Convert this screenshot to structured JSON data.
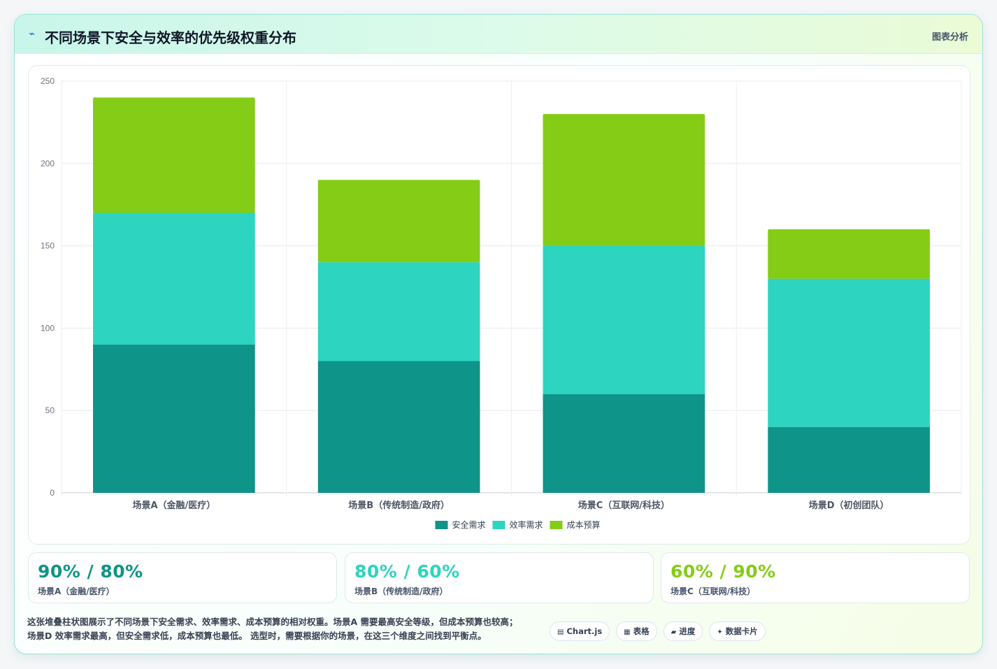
{
  "header": {
    "logo_icon": "⌁",
    "title": "不同场景下安全与效率的优先级权重分布",
    "tag": "图表分析"
  },
  "chart_data": {
    "type": "bar",
    "stacked": true,
    "categories": [
      "场景A（金融/医疗）",
      "场景B（传统制造/政府）",
      "场景C（互联网/科技）",
      "场景D（初创团队）"
    ],
    "series": [
      {
        "name": "安全需求",
        "values": [
          90,
          80,
          60,
          40
        ],
        "color": "#0e9488"
      },
      {
        "name": "效率需求",
        "values": [
          80,
          60,
          90,
          90
        ],
        "color": "#2dd4bf"
      },
      {
        "name": "成本预算",
        "values": [
          70,
          50,
          80,
          30
        ],
        "color": "#84cc16"
      }
    ],
    "yticks": [
      "0",
      "50",
      "100",
      "150",
      "200",
      "250"
    ],
    "ylim": [
      0,
      250
    ],
    "grid": true,
    "legend": "bottom"
  },
  "stats": [
    {
      "value": "90% / 80%",
      "label": "场景A（金融/医疗）",
      "color": "#0e9488"
    },
    {
      "value": "80% / 60%",
      "label": "场景B（传统制造/政府）",
      "color": "#2dd4bf"
    },
    {
      "value": "60% / 90%",
      "label": "场景C（互联网/科技）",
      "color": "#84cc16"
    }
  ],
  "description": {
    "line1": "这张堆叠柱状图展示了不同场景下安全需求、效率需求、成本预算的相对权重。场景A 需要最高安全等级，但成本预算也较高；",
    "line2": "场景D 效率需求最高，但安全需求低，成本预算也最低。 选型时，需要根据你的场景，在这三个维度之间找到平衡点。"
  },
  "chips": [
    {
      "icon": "▤",
      "label": "Chart.js"
    },
    {
      "icon": "▦",
      "label": "表格"
    },
    {
      "icon": "▰",
      "label": "进度"
    },
    {
      "icon": "✦",
      "label": "数据卡片"
    }
  ]
}
